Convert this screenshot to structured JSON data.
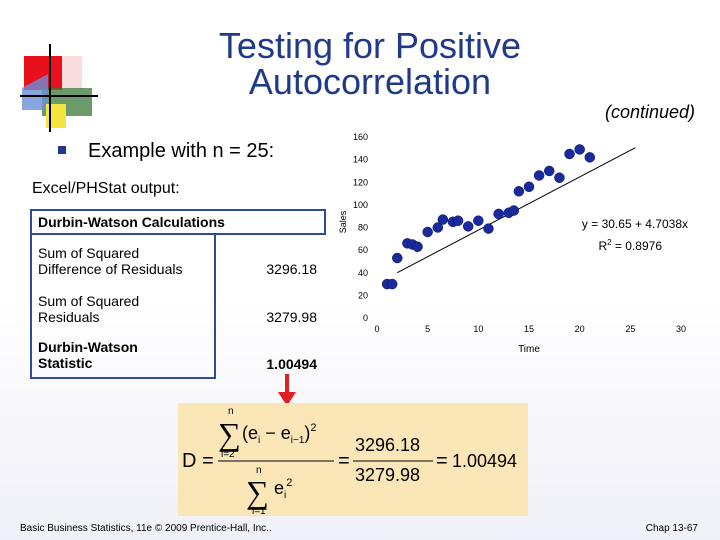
{
  "slide": {
    "title_line1": "Testing for Positive",
    "title_line2": "Autocorrelation",
    "subtitle": "(continued)",
    "bullet_text": "Example with  n = 25:",
    "output_label": "Excel/PHStat output:"
  },
  "table": {
    "header": "Durbin-Watson Calculations",
    "rows": [
      {
        "label_line1": "Sum of Squared",
        "label_line2": "Difference of Residuals",
        "value": "3296.18"
      },
      {
        "label_line1": "Sum of Squared",
        "label_line2": "Residuals",
        "value": "3279.98"
      },
      {
        "label_line1": "Durbin-Watson",
        "label_line2": "Statistic",
        "value": "1.00494"
      }
    ]
  },
  "chart_data": {
    "type": "scatter",
    "xlabel": "Time",
    "ylabel": "Sales",
    "xlim": [
      0,
      30
    ],
    "ylim": [
      0,
      160
    ],
    "x_ticks": [
      "0",
      "5",
      "10",
      "15",
      "20",
      "25",
      "30"
    ],
    "y_ticks": [
      "0",
      "20",
      "40",
      "60",
      "80",
      "100",
      "120",
      "140",
      "160"
    ],
    "points": [
      {
        "x": 1,
        "y": 30
      },
      {
        "x": 1.5,
        "y": 30
      },
      {
        "x": 2,
        "y": 53
      },
      {
        "x": 3,
        "y": 66
      },
      {
        "x": 3.5,
        "y": 65
      },
      {
        "x": 4,
        "y": 63
      },
      {
        "x": 5,
        "y": 76
      },
      {
        "x": 6,
        "y": 80
      },
      {
        "x": 6.5,
        "y": 87
      },
      {
        "x": 7.5,
        "y": 85
      },
      {
        "x": 8,
        "y": 86
      },
      {
        "x": 9,
        "y": 81
      },
      {
        "x": 10,
        "y": 86
      },
      {
        "x": 11,
        "y": 79
      },
      {
        "x": 12,
        "y": 92
      },
      {
        "x": 13,
        "y": 93
      },
      {
        "x": 13.5,
        "y": 95
      },
      {
        "x": 14,
        "y": 112
      },
      {
        "x": 15,
        "y": 116
      },
      {
        "x": 16,
        "y": 126
      },
      {
        "x": 17,
        "y": 130
      },
      {
        "x": 18,
        "y": 124
      },
      {
        "x": 19,
        "y": 145
      },
      {
        "x": 20,
        "y": 149
      },
      {
        "x": 21,
        "y": 142
      }
    ],
    "trendline": {
      "intercept": 30.65,
      "slope": 4.7038
    },
    "equation": "y = 30.65 + 4.7038x",
    "r2_label": "R",
    "r2_exp": "2",
    "r2_value": " = 0.8976",
    "colors": {
      "point": "#1a2a9c",
      "line": "#000000"
    }
  },
  "formula": {
    "lhs": "D",
    "numerator_value": "3296.18",
    "denominator_value": "3279.98",
    "result": "1.00494",
    "sum_top": "n",
    "sum_bottom_num": "i=2",
    "sum_bottom_den": "i=1",
    "num_term": "(e",
    "num_sub_i": "i",
    "num_minus": " − e",
    "num_sub_im1": "i−1",
    "num_close": ")",
    "num_exp": "2",
    "den_term": "e",
    "den_sub": "i",
    "den_exp": "2"
  },
  "footer": {
    "left": "Basic Business Statistics, 11e © 2009 Prentice-Hall, Inc..",
    "right": "Chap 13-67"
  }
}
